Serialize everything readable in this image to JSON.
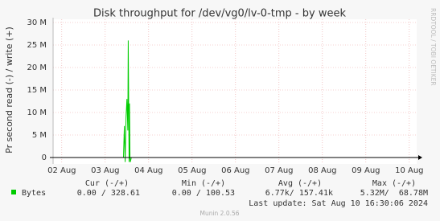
{
  "chart_data": {
    "type": "line",
    "title": "Disk throughput for /dev/vg0/lv-0-tmp - by week",
    "y_label": "Pr second read (-) / write (+)",
    "side_text": "RRDTOOL / TOBI OETIKER",
    "x": [
      1.8,
      3.42,
      3.44,
      3.46,
      3.48,
      3.5,
      3.52,
      3.53,
      3.55,
      3.56,
      3.57,
      3.58,
      3.6,
      10.17
    ],
    "series": [
      {
        "name": "Bytes",
        "color": "#00cc00",
        "values": [
          0,
          0,
          7000000,
          -1000000,
          9000000,
          13000000,
          6000000,
          26000000,
          -1000000,
          12000000,
          0,
          -1000000,
          0,
          0
        ]
      }
    ],
    "xlim": [
      1.8,
      10.17
    ],
    "xticks": [
      {
        "value": 2,
        "label": "02 Aug"
      },
      {
        "value": 3,
        "label": "03 Aug"
      },
      {
        "value": 4,
        "label": "04 Aug"
      },
      {
        "value": 5,
        "label": "05 Aug"
      },
      {
        "value": 6,
        "label": "06 Aug"
      },
      {
        "value": 7,
        "label": "07 Aug"
      },
      {
        "value": 8,
        "label": "08 Aug"
      },
      {
        "value": 9,
        "label": "09 Aug"
      },
      {
        "value": 10,
        "label": "10 Aug"
      }
    ],
    "ylim": [
      -2000000,
      30000000
    ],
    "yticks": [
      0,
      {
        "value": 5000000,
        "label": "5 M"
      },
      {
        "value": 10000000,
        "label": "10 M"
      },
      {
        "value": 15000000,
        "label": "15 M"
      },
      {
        "value": 20000000,
        "label": "20 M"
      },
      {
        "value": 25000000,
        "label": "25 M"
      },
      {
        "value": 30000000,
        "label": "30 M"
      }
    ],
    "grid": true,
    "legend_table": {
      "headers": [
        "Cur (-/+)",
        "Min (-/+)",
        "Avg (-/+)",
        "Max (-/+)"
      ],
      "row": [
        "0.00 / 328.61",
        "0.00 / 100.53",
        "6.77k/ 157.41k",
        "5.32M/  68.78M"
      ]
    },
    "last_update": "Last update: Sat Aug 10 16:30:06 2024",
    "footer": "Munin 2.0.56"
  }
}
